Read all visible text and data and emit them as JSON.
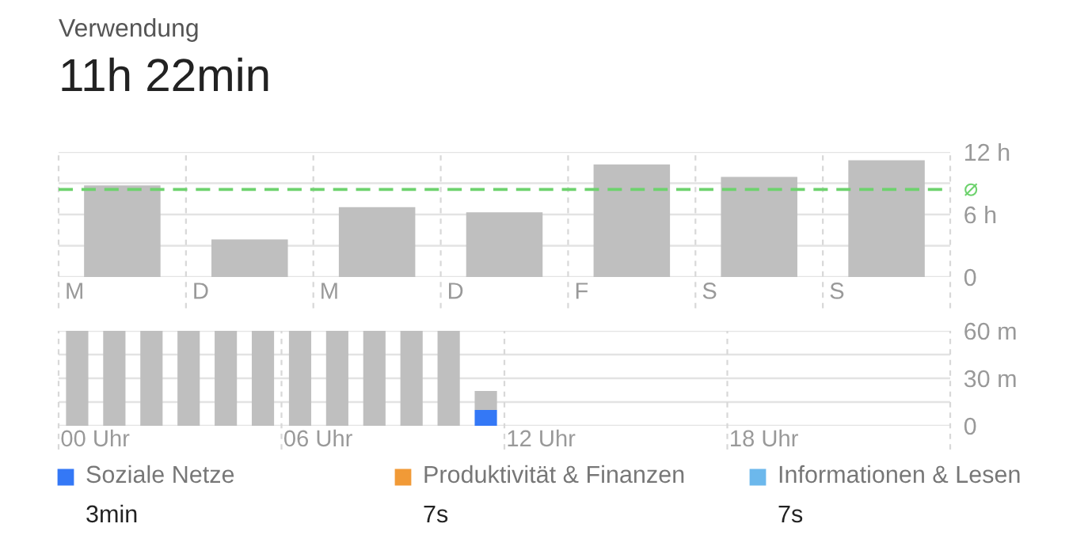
{
  "chart_data": [
    {
      "type": "bar",
      "title": "Verwendung",
      "subtitle": "11h 22min",
      "categories": [
        "M",
        "D",
        "M",
        "D",
        "F",
        "S",
        "S"
      ],
      "series": [
        {
          "color": "#bfbfbf",
          "values": [
            8.8,
            3.6,
            6.7,
            6.2,
            10.8,
            9.6,
            11.2
          ]
        }
      ],
      "ylim": [
        0,
        12
      ],
      "yticks": [
        {
          "value": 0,
          "label": "0"
        },
        {
          "value": 3,
          "label": null
        },
        {
          "value": 6,
          "label": "6 h"
        },
        {
          "value": 9,
          "label": null
        },
        {
          "value": 12,
          "label": "12 h"
        }
      ],
      "ref_lines": [
        {
          "axis": "y",
          "value": 8.4,
          "label": "⌀",
          "color": "#6dd26d",
          "line_style": "dashed"
        }
      ],
      "grid": true
    },
    {
      "type": "bar",
      "stacked": true,
      "categories": [
        "00 Uhr",
        null,
        null,
        null,
        null,
        null,
        "06 Uhr",
        null,
        null,
        null,
        null,
        null,
        "12 Uhr",
        null,
        null,
        null,
        null,
        null,
        "18 Uhr",
        null,
        null,
        null,
        null,
        null
      ],
      "series": [
        {
          "name": "Soziale Netze",
          "color": "#3478f6",
          "values": [
            null,
            null,
            null,
            null,
            null,
            null,
            null,
            null,
            null,
            null,
            null,
            10,
            null,
            null,
            null,
            null,
            null,
            null,
            null,
            null,
            null,
            null,
            null,
            null
          ]
        },
        {
          "color": "#bfbfbf",
          "values": [
            60,
            60,
            60,
            60,
            60,
            60,
            60,
            60,
            60,
            60,
            60,
            12,
            null,
            null,
            null,
            null,
            null,
            null,
            null,
            null,
            null,
            null,
            null,
            null
          ]
        },
        {
          "name": "Produktivität & Finanzen",
          "color": "#f19a37",
          "values": [
            null,
            null,
            null,
            null,
            null,
            null,
            null,
            null,
            null,
            null,
            null,
            null,
            null,
            null,
            null,
            null,
            null,
            null,
            null,
            null,
            null,
            null,
            null,
            null
          ]
        },
        {
          "name": "Informationen & Lesen",
          "color": "#6cb8ec",
          "values": [
            null,
            null,
            null,
            null,
            null,
            null,
            null,
            null,
            null,
            null,
            null,
            null,
            null,
            null,
            null,
            null,
            null,
            null,
            null,
            null,
            null,
            null,
            null,
            null
          ]
        }
      ],
      "ylim": [
        0,
        60
      ],
      "yticks": [
        {
          "value": 0,
          "label": "0"
        },
        {
          "value": 15,
          "label": null
        },
        {
          "value": 30,
          "label": "30 m"
        },
        {
          "value": 45,
          "label": null
        },
        {
          "value": 60,
          "label": "60 m"
        }
      ],
      "legend": "bottom",
      "annotations": [
        "3min",
        "7s",
        "7s"
      ],
      "grid": true
    }
  ]
}
